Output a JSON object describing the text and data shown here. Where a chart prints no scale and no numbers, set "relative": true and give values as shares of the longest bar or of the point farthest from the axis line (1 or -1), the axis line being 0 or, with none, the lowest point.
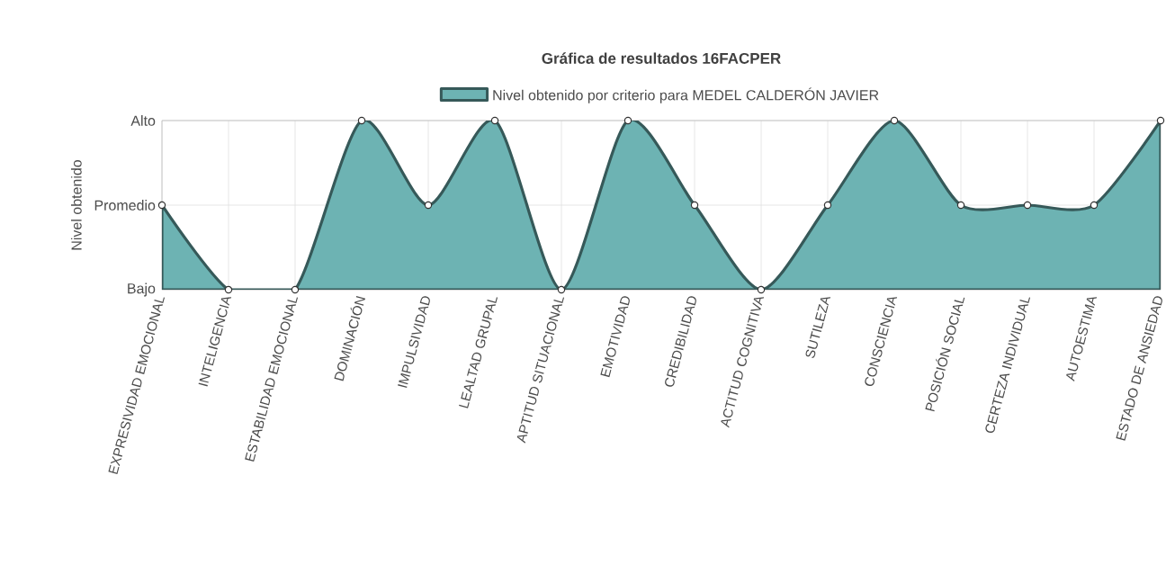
{
  "chart_data": {
    "type": "area",
    "title": "Gráfica de resultados 16FACPER",
    "ylabel": "Nivel obtenido",
    "categories": [
      "EXPRESIVIDAD EMOCIONAL",
      "INTELIGENCIA",
      "ESTABILIDAD EMOCIONAL",
      "DOMINACIÓN",
      "IMPULSIVIDAD",
      "LEALTAD GRUPAL",
      "APTITUD SITUACIONAL",
      "EMOTIVIDAD",
      "CREDIBILIDAD",
      "ACTITUD COGNITIVA",
      "SUTILEZA",
      "CONSCIENCIA",
      "POSICIÓN SOCIAL",
      "CERTEZA INDIVIDUAL",
      "AUTOESTIMA",
      "ESTADO DE ANSIEDAD"
    ],
    "series": [
      {
        "name": "Nivel obtenido por criterio para MEDEL CALDERÓN JAVIER",
        "color": "#6db3b3",
        "values": [
          0.5,
          0,
          0,
          1,
          0.5,
          1,
          0,
          1,
          0.5,
          0,
          0.5,
          1,
          0.5,
          0.5,
          0.5,
          1
        ]
      }
    ],
    "relative": true,
    "annotations": [
      "Bajo",
      "Promedio",
      "Alto"
    ],
    "grid": true,
    "legend": "top",
    "marker": "circle",
    "line_style": "solid"
  }
}
